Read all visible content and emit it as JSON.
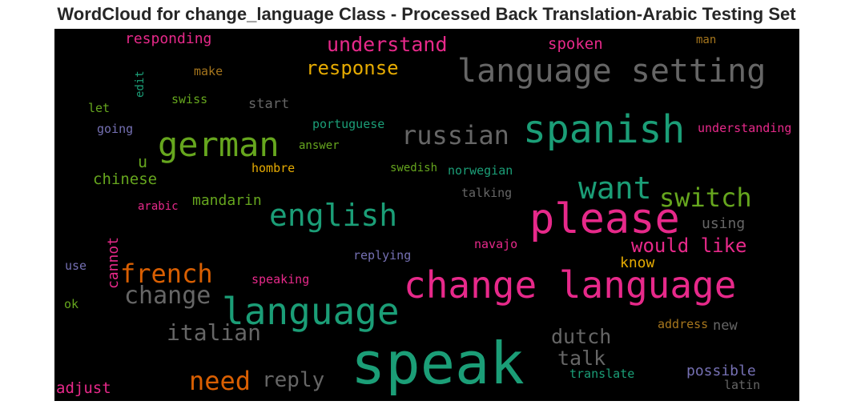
{
  "chart_data": {
    "type": "wordcloud",
    "title": "WordCloud for change_language Class - Processed Back Translation-Arabic Testing Set",
    "background": "#000000",
    "palette": {
      "teal": "#1b9e77",
      "green": "#66a61e",
      "pink": "#e7298a",
      "orange": "#d95f02",
      "yellow": "#e6ab02",
      "brown": "#a6761d",
      "grey": "#666666",
      "purple": "#7570b3"
    },
    "words": [
      {
        "text": "speak",
        "color": "teal"
      },
      {
        "text": "change language",
        "color": "pink"
      },
      {
        "text": "please",
        "color": "pink"
      },
      {
        "text": "language setting",
        "color": "grey"
      },
      {
        "text": "spanish",
        "color": "teal"
      },
      {
        "text": "language",
        "color": "teal"
      },
      {
        "text": "german",
        "color": "green"
      },
      {
        "text": "english",
        "color": "teal"
      },
      {
        "text": "want",
        "color": "teal"
      },
      {
        "text": "switch",
        "color": "green"
      },
      {
        "text": "russian",
        "color": "grey"
      },
      {
        "text": "french",
        "color": "orange"
      },
      {
        "text": "need",
        "color": "orange"
      },
      {
        "text": "change",
        "color": "grey"
      },
      {
        "text": "italian",
        "color": "grey"
      },
      {
        "text": "understand",
        "color": "pink"
      },
      {
        "text": "response",
        "color": "yellow"
      },
      {
        "text": "would like",
        "color": "pink"
      },
      {
        "text": "reply",
        "color": "grey"
      },
      {
        "text": "dutch",
        "color": "grey"
      },
      {
        "text": "talk",
        "color": "grey"
      },
      {
        "text": "chinese",
        "color": "green"
      },
      {
        "text": "mandarin",
        "color": "green"
      },
      {
        "text": "adjust",
        "color": "pink"
      },
      {
        "text": "cannot",
        "color": "pink"
      },
      {
        "text": "u",
        "color": "green"
      },
      {
        "text": "responding",
        "color": "pink"
      },
      {
        "text": "spoken",
        "color": "pink"
      },
      {
        "text": "using",
        "color": "grey"
      },
      {
        "text": "know",
        "color": "yellow"
      },
      {
        "text": "possible",
        "color": "purple"
      },
      {
        "text": "start",
        "color": "grey"
      },
      {
        "text": "understanding",
        "color": "pink"
      },
      {
        "text": "portuguese",
        "color": "teal"
      },
      {
        "text": "swedish",
        "color": "green"
      },
      {
        "text": "norwegian",
        "color": "teal"
      },
      {
        "text": "talking",
        "color": "grey"
      },
      {
        "text": "replying",
        "color": "purple"
      },
      {
        "text": "speaking",
        "color": "pink"
      },
      {
        "text": "navajo",
        "color": "pink"
      },
      {
        "text": "translate",
        "color": "teal"
      },
      {
        "text": "address",
        "color": "brown"
      },
      {
        "text": "new",
        "color": "grey"
      },
      {
        "text": "latin",
        "color": "grey"
      },
      {
        "text": "arabic",
        "color": "pink"
      },
      {
        "text": "hombre",
        "color": "yellow"
      },
      {
        "text": "answer",
        "color": "green"
      },
      {
        "text": "swiss",
        "color": "green"
      },
      {
        "text": "make",
        "color": "brown"
      },
      {
        "text": "man",
        "color": "brown"
      },
      {
        "text": "edit",
        "color": "teal"
      },
      {
        "text": "let",
        "color": "green"
      },
      {
        "text": "going",
        "color": "purple"
      },
      {
        "text": "use",
        "color": "purple"
      },
      {
        "text": "ok",
        "color": "green"
      }
    ]
  }
}
